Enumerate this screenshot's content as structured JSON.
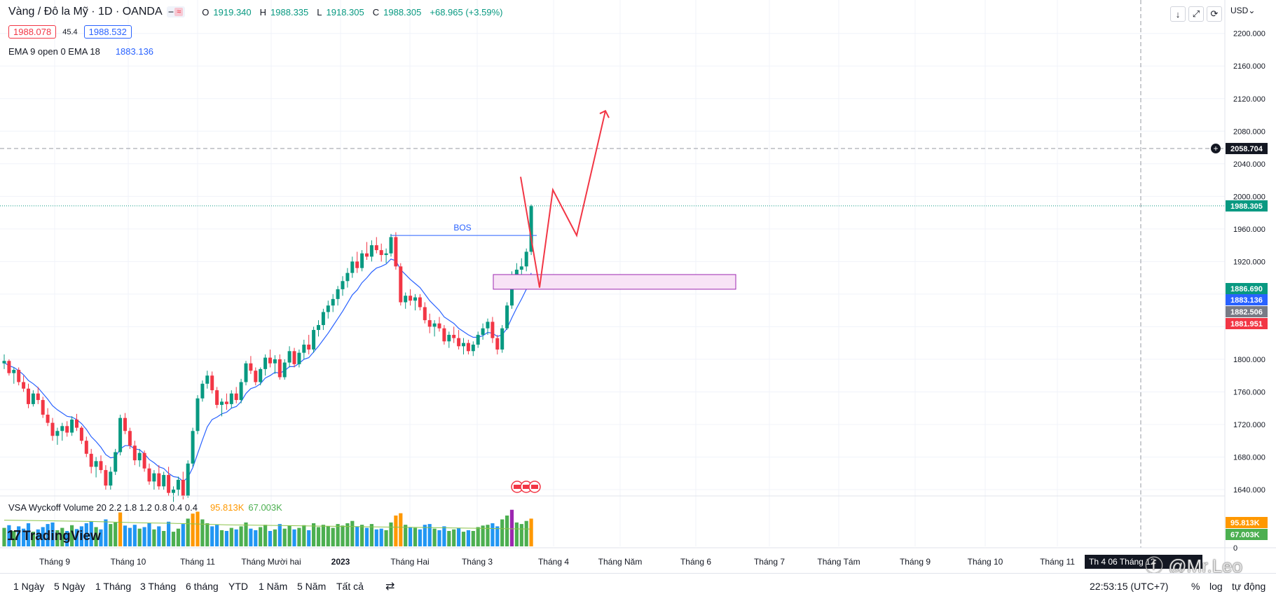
{
  "header": {
    "symbol": "Vàng / Đô la Mỹ · 1D · OANDA",
    "toggle_a": "━",
    "toggle_b": "≈",
    "open_label": "O",
    "open": "1919.340",
    "high_label": "H",
    "high": "1988.335",
    "low_label": "L",
    "low": "1918.305",
    "close_label": "C",
    "close": "1988.305",
    "change": "+68.965 (+3.59%)",
    "bid": "1988.078",
    "spread": "45.4",
    "ask": "1988.532",
    "ema_label": "EMA 9 open 0 EMA 18",
    "ema_value": "1883.136",
    "vsa_label": "VSA Wyckoff Volume 20 2.2 1.8 1.2 0.8 0.4 0.4",
    "vsa_value1": "95.813K",
    "vsa_value2": "67.003K"
  },
  "toolbar": {
    "down_icon": "↓",
    "expand_icon": "⤢",
    "reset_icon": "⟳",
    "currency": "USD⌄"
  },
  "bottom_bar": {
    "ranges": [
      "1 Ngày",
      "5 Ngày",
      "1 Tháng",
      "3 Tháng",
      "6 tháng",
      "YTD",
      "1 Năm",
      "5 Năm",
      "Tất cả"
    ],
    "compare_icon": "⇄",
    "clock": "22:53:15 (UTC+7)",
    "percent": "%",
    "log": "log",
    "auto": "tự động"
  },
  "branding": {
    "logo_mark": "17",
    "logo_text": "TradingView",
    "watermark": "ⓕ @Mr.Leo"
  },
  "chart_data": {
    "type": "candlestick",
    "title": "Vàng / Đô la Mỹ · 1D · OANDA",
    "y_axis": {
      "ticks": [
        1640,
        1680,
        1720,
        1760,
        1800,
        1840,
        1880,
        1920,
        1960,
        2000,
        2040,
        2080,
        2120,
        2160,
        2200
      ],
      "tick_labels": [
        "1640.000",
        "1680.000",
        "1720.000",
        "1760.000",
        "1800.000",
        "",
        "",
        "1920.000",
        "1960.000",
        "2000.000",
        "2040.000",
        "2080.000",
        "2120.000",
        "2160.000",
        "2200.000"
      ],
      "range": [
        1610,
        2230
      ]
    },
    "x_axis": {
      "labels": [
        "Tháng 9",
        "Tháng 10",
        "Tháng 11",
        "Tháng Mười hai",
        "2023",
        "Tháng Hai",
        "Tháng 3",
        "Tháng 4",
        "Tháng Năm",
        "Tháng 6",
        "Tháng 7",
        "Tháng Tám",
        "Tháng 9",
        "Tháng 10",
        "Tháng 11",
        "Th 4 06 Tháng 12"
      ]
    },
    "price_tags": [
      {
        "value": "2058.704",
        "price": 2058.704,
        "color": "#131722"
      },
      {
        "value": "1988.305",
        "price": 1988.305,
        "color": "#089981"
      },
      {
        "value": "1886.690",
        "price": 1886.69,
        "color": "#089981"
      },
      {
        "value": "1883.136",
        "price": 1883.136,
        "color": "#2962ff"
      },
      {
        "value": "1882.506",
        "price": 1882.506,
        "color": "#787b86"
      },
      {
        "value": "1881.951",
        "price": 1881.951,
        "color": "#f23645"
      }
    ],
    "volume_tags": [
      {
        "value": "95.813K",
        "color": "#ff9800"
      },
      {
        "value": "67.003K",
        "color": "#4caf50"
      }
    ],
    "volume_axis_label": "0",
    "annotations": {
      "bos_label": "BOS",
      "bos_level": 1952,
      "zone": [
        1886,
        1904
      ],
      "projection_prices": [
        2024,
        1888,
        2008,
        1952,
        2105
      ]
    },
    "colors": {
      "up": "#089981",
      "down": "#f23645",
      "ema": "#2962ff",
      "annotation": "#f23645",
      "zone_border": "#9c27b0",
      "zone_fill": "#f8e3f6"
    },
    "candles": [
      [
        1795,
        1806,
        1788,
        1798
      ],
      [
        1798,
        1800,
        1780,
        1783
      ],
      [
        1783,
        1790,
        1770,
        1787
      ],
      [
        1787,
        1790,
        1768,
        1772
      ],
      [
        1772,
        1780,
        1760,
        1764
      ],
      [
        1764,
        1770,
        1740,
        1745
      ],
      [
        1745,
        1762,
        1742,
        1758
      ],
      [
        1758,
        1766,
        1745,
        1750
      ],
      [
        1750,
        1754,
        1728,
        1732
      ],
      [
        1732,
        1740,
        1718,
        1722
      ],
      [
        1722,
        1728,
        1700,
        1706
      ],
      [
        1706,
        1716,
        1695,
        1712
      ],
      [
        1712,
        1722,
        1700,
        1718
      ],
      [
        1718,
        1724,
        1705,
        1710
      ],
      [
        1710,
        1730,
        1706,
        1726
      ],
      [
        1726,
        1733,
        1712,
        1716
      ],
      [
        1716,
        1718,
        1696,
        1700
      ],
      [
        1700,
        1705,
        1680,
        1684
      ],
      [
        1684,
        1690,
        1660,
        1668
      ],
      [
        1668,
        1680,
        1655,
        1675
      ],
      [
        1675,
        1682,
        1660,
        1664
      ],
      [
        1664,
        1670,
        1640,
        1645
      ],
      [
        1645,
        1668,
        1640,
        1662
      ],
      [
        1662,
        1690,
        1658,
        1686
      ],
      [
        1686,
        1732,
        1682,
        1728
      ],
      [
        1728,
        1734,
        1708,
        1712
      ],
      [
        1712,
        1716,
        1690,
        1694
      ],
      [
        1694,
        1700,
        1670,
        1676
      ],
      [
        1676,
        1690,
        1668,
        1685
      ],
      [
        1685,
        1688,
        1662,
        1666
      ],
      [
        1666,
        1672,
        1646,
        1650
      ],
      [
        1650,
        1664,
        1640,
        1660
      ],
      [
        1660,
        1670,
        1640,
        1644
      ],
      [
        1644,
        1662,
        1640,
        1658
      ],
      [
        1658,
        1668,
        1632,
        1636
      ],
      [
        1636,
        1644,
        1625,
        1640
      ],
      [
        1640,
        1656,
        1632,
        1652
      ],
      [
        1652,
        1662,
        1628,
        1632
      ],
      [
        1632,
        1676,
        1630,
        1672
      ],
      [
        1672,
        1716,
        1668,
        1712
      ],
      [
        1712,
        1756,
        1708,
        1752
      ],
      [
        1752,
        1774,
        1748,
        1770
      ],
      [
        1770,
        1786,
        1764,
        1780
      ],
      [
        1780,
        1785,
        1758,
        1762
      ],
      [
        1762,
        1766,
        1740,
        1744
      ],
      [
        1744,
        1752,
        1730,
        1748
      ],
      [
        1748,
        1758,
        1738,
        1745
      ],
      [
        1745,
        1762,
        1740,
        1758
      ],
      [
        1758,
        1766,
        1746,
        1750
      ],
      [
        1750,
        1776,
        1746,
        1772
      ],
      [
        1772,
        1798,
        1768,
        1795
      ],
      [
        1795,
        1804,
        1782,
        1786
      ],
      [
        1786,
        1790,
        1768,
        1772
      ],
      [
        1772,
        1790,
        1768,
        1788
      ],
      [
        1788,
        1806,
        1780,
        1802
      ],
      [
        1802,
        1812,
        1790,
        1795
      ],
      [
        1795,
        1805,
        1782,
        1800
      ],
      [
        1800,
        1806,
        1775,
        1778
      ],
      [
        1778,
        1800,
        1775,
        1796
      ],
      [
        1796,
        1816,
        1790,
        1810
      ],
      [
        1810,
        1814,
        1790,
        1794
      ],
      [
        1794,
        1812,
        1790,
        1808
      ],
      [
        1808,
        1824,
        1800,
        1818
      ],
      [
        1818,
        1830,
        1806,
        1812
      ],
      [
        1812,
        1840,
        1808,
        1836
      ],
      [
        1836,
        1848,
        1828,
        1842
      ],
      [
        1842,
        1862,
        1836,
        1858
      ],
      [
        1858,
        1872,
        1850,
        1866
      ],
      [
        1866,
        1880,
        1858,
        1874
      ],
      [
        1874,
        1890,
        1866,
        1886
      ],
      [
        1886,
        1902,
        1878,
        1896
      ],
      [
        1896,
        1912,
        1888,
        1906
      ],
      [
        1906,
        1926,
        1900,
        1920
      ],
      [
        1920,
        1932,
        1906,
        1912
      ],
      [
        1912,
        1934,
        1908,
        1930
      ],
      [
        1930,
        1944,
        1922,
        1926
      ],
      [
        1926,
        1946,
        1920,
        1940
      ],
      [
        1940,
        1950,
        1930,
        1934
      ],
      [
        1934,
        1942,
        1920,
        1928
      ],
      [
        1928,
        1936,
        1918,
        1930
      ],
      [
        1930,
        1954,
        1926,
        1950
      ],
      [
        1950,
        1956,
        1910,
        1914
      ],
      [
        1914,
        1918,
        1866,
        1870
      ],
      [
        1870,
        1882,
        1862,
        1878
      ],
      [
        1878,
        1886,
        1866,
        1872
      ],
      [
        1872,
        1880,
        1860,
        1876
      ],
      [
        1876,
        1880,
        1860,
        1864
      ],
      [
        1864,
        1870,
        1844,
        1848
      ],
      [
        1848,
        1856,
        1832,
        1840
      ],
      [
        1840,
        1848,
        1828,
        1844
      ],
      [
        1844,
        1852,
        1834,
        1838
      ],
      [
        1838,
        1842,
        1818,
        1822
      ],
      [
        1822,
        1834,
        1814,
        1830
      ],
      [
        1830,
        1840,
        1820,
        1826
      ],
      [
        1826,
        1836,
        1812,
        1816
      ],
      [
        1816,
        1826,
        1806,
        1820
      ],
      [
        1820,
        1824,
        1806,
        1810
      ],
      [
        1810,
        1822,
        1804,
        1818
      ],
      [
        1818,
        1834,
        1814,
        1830
      ],
      [
        1830,
        1844,
        1824,
        1838
      ],
      [
        1838,
        1850,
        1830,
        1846
      ],
      [
        1846,
        1852,
        1820,
        1826
      ],
      [
        1826,
        1830,
        1806,
        1812
      ],
      [
        1812,
        1842,
        1808,
        1838
      ],
      [
        1838,
        1870,
        1836,
        1866
      ],
      [
        1866,
        1908,
        1862,
        1904
      ],
      [
        1904,
        1918,
        1886,
        1910
      ],
      [
        1910,
        1924,
        1900,
        1914
      ],
      [
        1914,
        1936,
        1908,
        1932
      ],
      [
        1932,
        1990,
        1928,
        1988
      ]
    ],
    "ema": [
      1796,
      1792,
      1790,
      1786,
      1781,
      1774,
      1770,
      1765,
      1758,
      1751,
      1743,
      1738,
      1734,
      1730,
      1729,
      1726,
      1721,
      1714,
      1705,
      1699,
      1692,
      1683,
      1679,
      1680,
      1690,
      1694,
      1694,
      1690,
      1689,
      1684,
      1677,
      1673,
      1668,
      1666,
      1660,
      1656,
      1655,
      1650,
      1655,
      1667,
      1684,
      1701,
      1717,
      1726,
      1729,
      1733,
      1735,
      1740,
      1742,
      1748,
      1758,
      1764,
      1766,
      1770,
      1777,
      1780,
      1784,
      1783,
      1786,
      1791,
      1791,
      1795,
      1800,
      1802,
      1809,
      1816,
      1824,
      1832,
      1841,
      1850,
      1859,
      1869,
      1879,
      1885,
      1894,
      1900,
      1907,
      1912,
      1914,
      1917,
      1923,
      1921,
      1910,
      1904,
      1898,
      1893,
      1888,
      1880,
      1872,
      1866,
      1860,
      1852,
      1848,
      1844,
      1838,
      1834,
      1830,
      1827,
      1827,
      1829,
      1833,
      1832,
      1828,
      1830,
      1838,
      1851,
      1863,
      1874,
      1886,
      1906
    ],
    "volumes": [
      [
        48,
        1
      ],
      [
        55,
        0
      ],
      [
        40,
        1
      ],
      [
        52,
        0
      ],
      [
        46,
        0
      ],
      [
        60,
        0
      ],
      [
        38,
        1
      ],
      [
        44,
        0
      ],
      [
        50,
        0
      ],
      [
        58,
        0
      ],
      [
        62,
        0
      ],
      [
        42,
        1
      ],
      [
        48,
        1
      ],
      [
        40,
        0
      ],
      [
        55,
        1
      ],
      [
        45,
        0
      ],
      [
        52,
        0
      ],
      [
        60,
        0
      ],
      [
        65,
        0
      ],
      [
        50,
        1
      ],
      [
        44,
        0
      ],
      [
        70,
        0
      ],
      [
        58,
        1
      ],
      [
        62,
        1
      ],
      [
        88,
        2
      ],
      [
        54,
        0
      ],
      [
        48,
        0
      ],
      [
        56,
        0
      ],
      [
        46,
        1
      ],
      [
        50,
        0
      ],
      [
        60,
        0
      ],
      [
        44,
        1
      ],
      [
        52,
        0
      ],
      [
        40,
        1
      ],
      [
        64,
        0
      ],
      [
        38,
        1
      ],
      [
        46,
        1
      ],
      [
        58,
        0
      ],
      [
        72,
        1
      ],
      [
        85,
        2
      ],
      [
        90,
        2
      ],
      [
        70,
        1
      ],
      [
        60,
        1
      ],
      [
        52,
        0
      ],
      [
        56,
        0
      ],
      [
        42,
        1
      ],
      [
        40,
        0
      ],
      [
        48,
        1
      ],
      [
        44,
        0
      ],
      [
        52,
        1
      ],
      [
        62,
        1
      ],
      [
        46,
        0
      ],
      [
        42,
        0
      ],
      [
        50,
        1
      ],
      [
        56,
        1
      ],
      [
        40,
        0
      ],
      [
        44,
        1
      ],
      [
        58,
        0
      ],
      [
        46,
        1
      ],
      [
        54,
        1
      ],
      [
        44,
        0
      ],
      [
        48,
        1
      ],
      [
        55,
        1
      ],
      [
        42,
        0
      ],
      [
        60,
        1
      ],
      [
        50,
        1
      ],
      [
        56,
        1
      ],
      [
        52,
        1
      ],
      [
        48,
        1
      ],
      [
        58,
        1
      ],
      [
        54,
        1
      ],
      [
        60,
        1
      ],
      [
        66,
        1
      ],
      [
        52,
        0
      ],
      [
        56,
        1
      ],
      [
        48,
        0
      ],
      [
        58,
        1
      ],
      [
        44,
        0
      ],
      [
        46,
        0
      ],
      [
        42,
        1
      ],
      [
        62,
        1
      ],
      [
        80,
        2
      ],
      [
        86,
        2
      ],
      [
        56,
        1
      ],
      [
        50,
        0
      ],
      [
        48,
        1
      ],
      [
        44,
        0
      ],
      [
        56,
        0
      ],
      [
        58,
        0
      ],
      [
        46,
        1
      ],
      [
        42,
        0
      ],
      [
        52,
        0
      ],
      [
        40,
        1
      ],
      [
        44,
        1
      ],
      [
        48,
        0
      ],
      [
        38,
        1
      ],
      [
        42,
        0
      ],
      [
        40,
        1
      ],
      [
        50,
        1
      ],
      [
        54,
        1
      ],
      [
        56,
        1
      ],
      [
        60,
        0
      ],
      [
        52,
        0
      ],
      [
        70,
        1
      ],
      [
        80,
        1
      ],
      [
        95,
        3
      ],
      [
        62,
        1
      ],
      [
        58,
        1
      ],
      [
        66,
        1
      ],
      [
        72,
        2
      ]
    ],
    "volume_avg": [
      68,
      67,
      66,
      65,
      63,
      61,
      60,
      58,
      56,
      55,
      54,
      53,
      52,
      51,
      50,
      49,
      48,
      47,
      46,
      45
    ]
  }
}
